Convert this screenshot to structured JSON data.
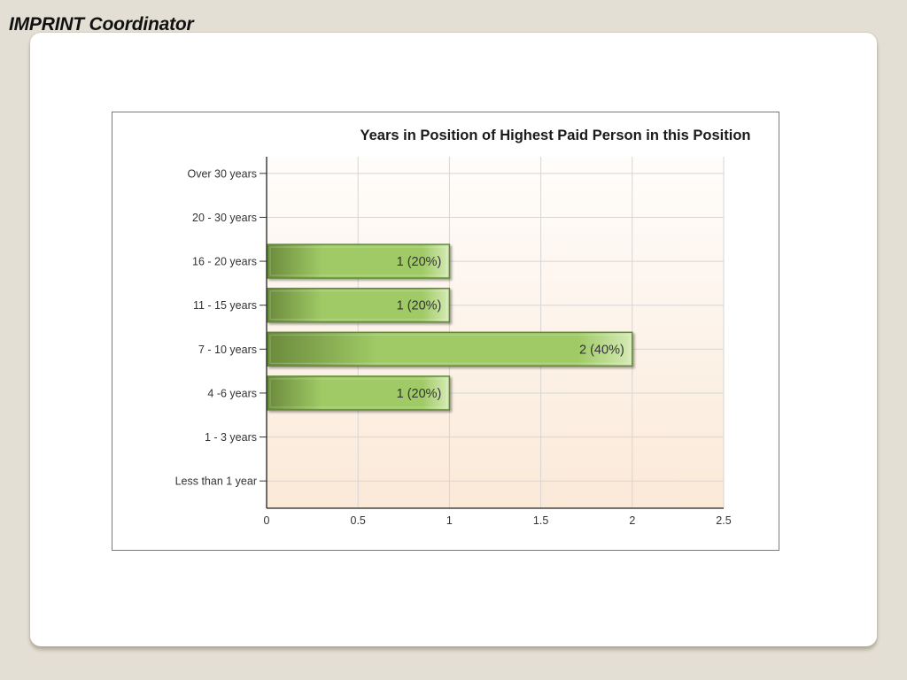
{
  "slide": {
    "heading": "IMPRINT Coordinator"
  },
  "colors": {
    "bar_dark": "#6b8a3c",
    "bar_light": "#9fca65",
    "bar_border": "#5f8a35",
    "plot_bg_top": "#fffdfb",
    "plot_bg_bottom": "#fbe9d8",
    "grid": "#d6d6d6"
  },
  "chart_data": {
    "type": "bar",
    "orientation": "horizontal",
    "title": "Years in Position of Highest Paid Person in this Position",
    "categories": [
      "Over 30 years",
      "20 - 30 years",
      "16 - 20 years",
      "11 - 15 years",
      "7 - 10 years",
      "4 -6 years",
      "1 - 3 years",
      "Less than 1 year"
    ],
    "values": [
      0,
      0,
      1,
      1,
      2,
      1,
      0,
      0
    ],
    "data_labels": [
      "",
      "",
      "1 (20%)",
      "1 (20%)",
      "2 (40%)",
      "1 (20%)",
      "",
      ""
    ],
    "xlim": [
      0,
      2.5
    ],
    "xticks": [
      "0",
      "0.5",
      "1",
      "1.5",
      "2",
      "2.5"
    ],
    "xtick_values": [
      0,
      0.5,
      1,
      1.5,
      2,
      2.5
    ],
    "xlabel": "",
    "ylabel": "",
    "grid": true,
    "legend": "none"
  }
}
